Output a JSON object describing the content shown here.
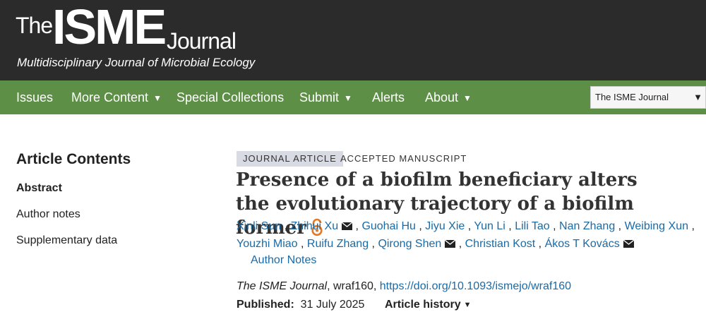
{
  "header": {
    "logo_the": "The",
    "logo_isme": "ISME",
    "logo_journal": "Journal",
    "tagline": "Multidisciplinary Journal of Microbial Ecology"
  },
  "nav": {
    "items": [
      {
        "label": "Issues"
      },
      {
        "label": "More Content",
        "dropdown": true
      },
      {
        "label": "Special Collections"
      },
      {
        "label": "Submit",
        "dropdown": true
      },
      {
        "label": "Alerts"
      },
      {
        "label": "About",
        "dropdown": true
      }
    ],
    "journal_select": "The ISME Journal",
    "bg_color": "#5e8f46"
  },
  "sidebar": {
    "title": "Article Contents",
    "items": [
      {
        "label": "Abstract",
        "active": true
      },
      {
        "label": "Author notes"
      },
      {
        "label": "Supplementary data"
      }
    ]
  },
  "article": {
    "type_badge": "JOURNAL ARTICLE",
    "status": "ACCEPTED MANUSCRIPT",
    "title": "Presence of a biofilm beneficiary alters the evolutionary trajectory of a biofilm former",
    "authors": [
      {
        "name": "Xinli Sun",
        "mail": false
      },
      {
        "name": "Zhihui Xu",
        "mail": true
      },
      {
        "name": "Guohai Hu",
        "mail": false
      },
      {
        "name": "Jiyu Xie",
        "mail": false
      },
      {
        "name": "Yun Li",
        "mail": false
      },
      {
        "name": "Lili Tao",
        "mail": false
      },
      {
        "name": "Nan Zhang",
        "mail": false
      },
      {
        "name": "Weibing Xun",
        "mail": false
      },
      {
        "name": "Youzhi Miao",
        "mail": false
      },
      {
        "name": "Ruifu Zhang",
        "mail": false
      },
      {
        "name": "Qirong Shen",
        "mail": true
      },
      {
        "name": "Christian Kost",
        "mail": false
      },
      {
        "name": "Ákos T Kovács",
        "mail": true
      }
    ],
    "author_notes": "Author Notes",
    "journal_name": "The ISME Journal",
    "article_id": ", wraf160, ",
    "doi": "https://doi.org/10.1093/ismejo/wraf160",
    "published_label": "Published:",
    "published_date": "31 July 2025",
    "history_label": "Article history"
  }
}
